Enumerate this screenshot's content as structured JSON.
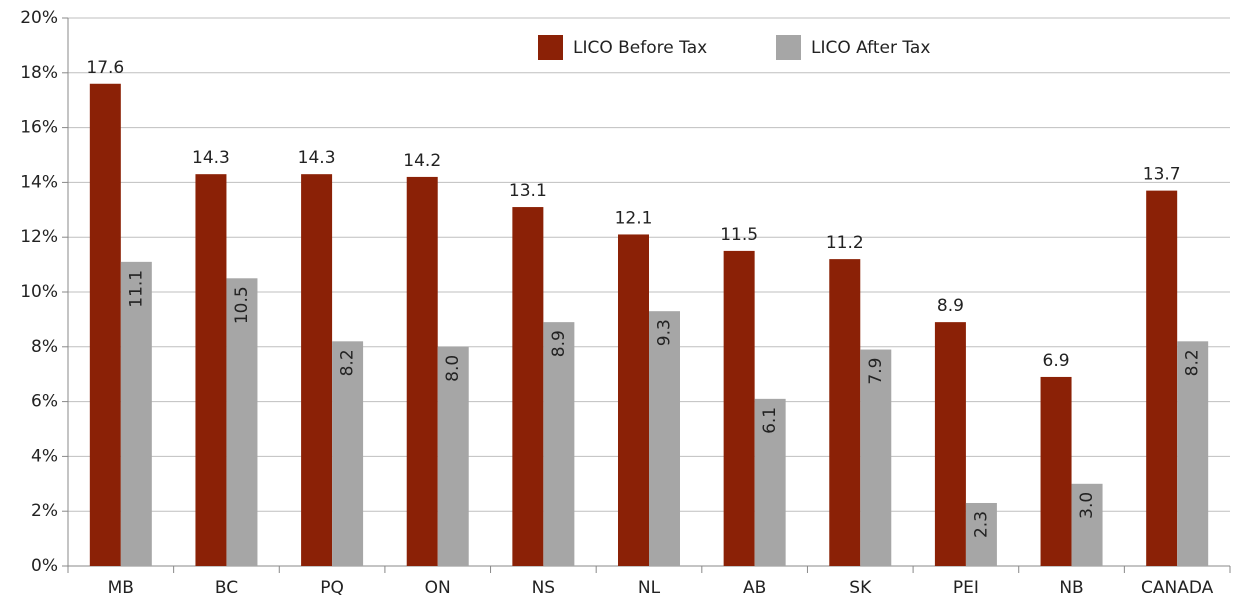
{
  "chart_data": {
    "type": "bar",
    "categories": [
      "MB",
      "BC",
      "PQ",
      "ON",
      "NS",
      "NL",
      "AB",
      "SK",
      "PEI",
      "NB",
      "CANADA"
    ],
    "series": [
      {
        "name": "LICO Before Tax",
        "color": "#8b2106",
        "values": [
          17.6,
          14.3,
          14.3,
          14.2,
          13.1,
          12.1,
          11.5,
          11.2,
          8.9,
          6.9,
          13.7
        ]
      },
      {
        "name": "LICO After Tax",
        "color": "#a6a6a6",
        "values": [
          11.1,
          10.5,
          8.2,
          8.0,
          8.9,
          9.3,
          6.1,
          7.9,
          2.3,
          3.0,
          8.2
        ],
        "value_labels": [
          "11.1",
          "10.5",
          "8.2",
          "8.0",
          "8.9",
          "9.3",
          "6.1",
          "7.9",
          "2.3",
          "3.0",
          "8.2"
        ]
      }
    ],
    "ylim": [
      0,
      20
    ],
    "yticks": [
      {
        "value": 0,
        "label": "0%"
      },
      {
        "value": 2,
        "label": "2%"
      },
      {
        "value": 4,
        "label": "4%"
      },
      {
        "value": 6,
        "label": "6%"
      },
      {
        "value": 8,
        "label": "8%"
      },
      {
        "value": 10,
        "label": "10%"
      },
      {
        "value": 12,
        "label": "12%"
      },
      {
        "value": 14,
        "label": "14%"
      },
      {
        "value": 16,
        "label": "16%"
      },
      {
        "value": 18,
        "label": "18%"
      },
      {
        "value": 20,
        "label": "20%"
      }
    ],
    "grid": true,
    "legend": "top"
  }
}
